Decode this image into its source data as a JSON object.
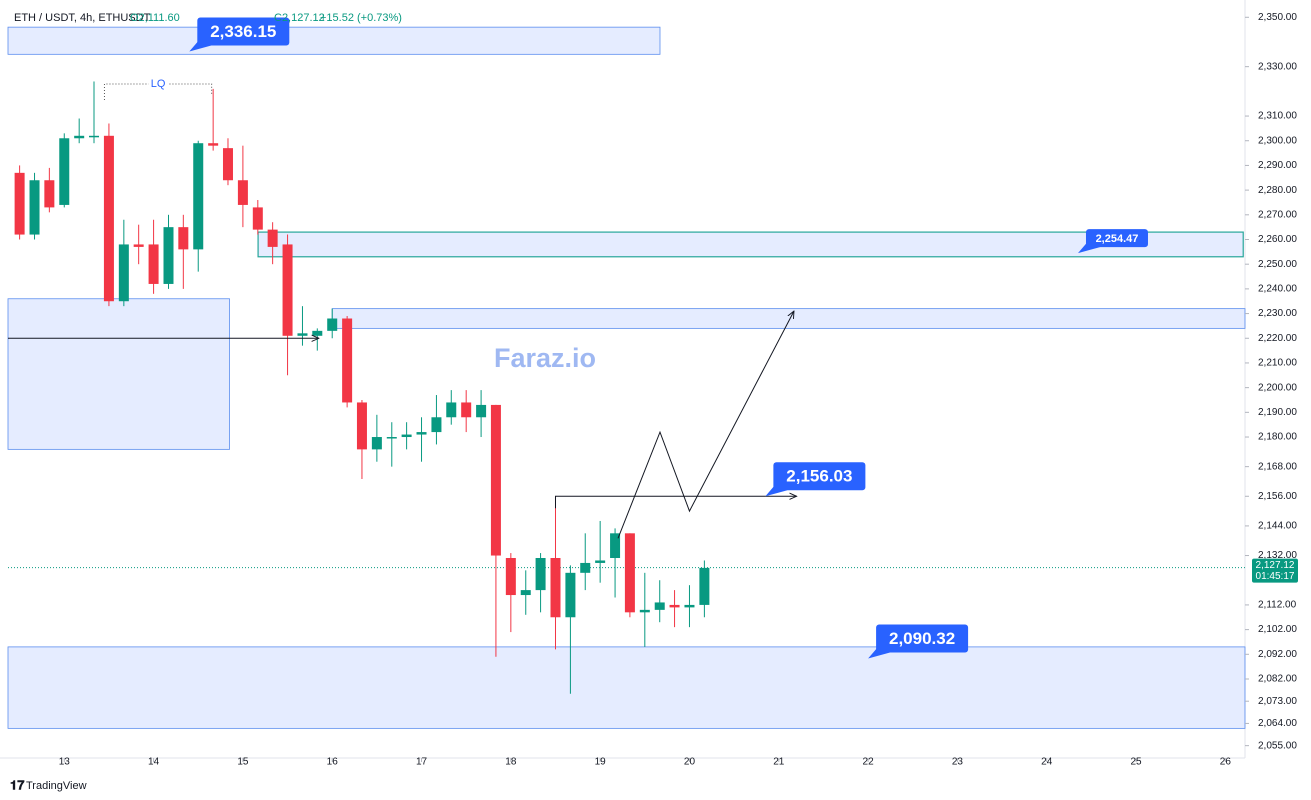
{
  "chart_data": {
    "type": "candlestick",
    "title": "ETH / USDT, 4h, ETHUSDT",
    "ohlc_open": "O2,111.60",
    "ohlc_close": "C2,127.12",
    "change": "+15.52 (+0.73%)",
    "watermark": "Faraz.io",
    "brand": "TradingView",
    "up_color": "#089981",
    "down_color": "#f23645",
    "x": [
      12.5,
      12.667,
      12.833,
      13,
      13.167,
      13.333,
      13.5,
      13.667,
      13.833,
      14,
      14.167,
      14.333,
      14.5,
      14.667,
      14.833,
      15,
      15.167,
      15.333,
      15.5,
      15.667,
      15.833,
      16,
      16.167,
      16.333,
      16.5,
      16.667,
      16.833,
      17,
      17.167,
      17.333,
      17.5,
      17.667,
      17.833,
      18,
      18.167,
      18.333,
      18.5,
      18.667,
      18.833,
      19,
      19.167,
      19.333,
      19.5,
      19.667,
      19.833,
      20,
      20.167
    ],
    "open": [
      2287,
      2262,
      2284,
      2274,
      2301,
      2302,
      2302,
      2235,
      2258,
      2258,
      2242,
      2265,
      2256,
      2299,
      2297,
      2284,
      2273,
      2264,
      2258,
      2221,
      2221,
      2223,
      2228,
      2194,
      2175,
      2180,
      2180,
      2181,
      2182,
      2188,
      2194,
      2188,
      2193,
      2131,
      2116,
      2118,
      2131,
      2107,
      2125,
      2129,
      2131,
      2141,
      2109,
      2110,
      2112,
      2111,
      2112
    ],
    "high": [
      2290,
      2287,
      2289,
      2303,
      2309,
      2324,
      2307,
      2268,
      2266,
      2268,
      2270,
      2270,
      2300,
      2321,
      2301,
      2298,
      2276,
      2267,
      2262,
      2233,
      2224,
      2232,
      2229,
      2195,
      2189,
      2186,
      2186,
      2188,
      2197,
      2199,
      2199,
      2199,
      2193,
      2133,
      2126,
      2133,
      2156,
      2128,
      2141,
      2146,
      2143,
      2141,
      2125,
      2122,
      2118,
      2120,
      2130
    ],
    "low": [
      2260,
      2260,
      2271,
      2273,
      2299,
      2299,
      2233,
      2233,
      2250,
      2238,
      2240,
      2240,
      2247,
      2296,
      2282,
      2265,
      2262,
      2250,
      2205,
      2217,
      2215,
      2220,
      2192,
      2163,
      2170,
      2168,
      2175,
      2170,
      2177,
      2185,
      2182,
      2180,
      2091,
      2101,
      2108,
      2109,
      2094,
      2076,
      2118,
      2121,
      2115,
      2107,
      2095,
      2105,
      2103,
      2103,
      2107
    ],
    "close": [
      2262,
      2284,
      2273,
      2301,
      2302,
      2302,
      2235,
      2258,
      2257,
      2242,
      2265,
      2256,
      2299,
      2298,
      2284,
      2274,
      2264,
      2257,
      2221,
      2222,
      2223,
      2228,
      2194,
      2175,
      2180,
      2180,
      2181,
      2182,
      2188,
      2194,
      2188,
      2193,
      2132,
      2116,
      2118,
      2131,
      2107,
      2125,
      2129,
      2130,
      2141,
      2109,
      2110,
      2113,
      2111,
      2112,
      2127
    ],
    "xlim": [
      12.37,
      26.22
    ],
    "xticks": [
      13,
      14,
      15,
      16,
      17,
      18,
      19,
      20,
      21,
      22,
      23,
      24,
      25,
      26
    ],
    "ylim": [
      2050,
      2357
    ],
    "yticks": [
      {
        "value": 2350,
        "label": "2,350.00"
      },
      {
        "value": 2330,
        "label": "2,330.00"
      },
      {
        "value": 2310,
        "label": "2,310.00"
      },
      {
        "value": 2300,
        "label": "2,300.00"
      },
      {
        "value": 2290,
        "label": "2,290.00"
      },
      {
        "value": 2280,
        "label": "2,280.00"
      },
      {
        "value": 2270,
        "label": "2,270.00"
      },
      {
        "value": 2260,
        "label": "2,260.00"
      },
      {
        "value": 2250,
        "label": "2,250.00"
      },
      {
        "value": 2240,
        "label": "2,240.00"
      },
      {
        "value": 2230,
        "label": "2,230.00"
      },
      {
        "value": 2220,
        "label": "2,220.00"
      },
      {
        "value": 2210,
        "label": "2,210.00"
      },
      {
        "value": 2200,
        "label": "2,200.00"
      },
      {
        "value": 2190,
        "label": "2,190.00"
      },
      {
        "value": 2180,
        "label": "2,180.00"
      },
      {
        "value": 2168,
        "label": "2,168.00"
      },
      {
        "value": 2156,
        "label": "2,156.00"
      },
      {
        "value": 2144,
        "label": "2,144.00"
      },
      {
        "value": 2132,
        "label": "2,132.00"
      },
      {
        "value": 2112,
        "label": "2,112.00"
      },
      {
        "value": 2102,
        "label": "2,102.00"
      },
      {
        "value": 2092,
        "label": "2,092.00"
      },
      {
        "value": 2082,
        "label": "2,082.00"
      },
      {
        "value": 2073,
        "label": "2,073.00"
      },
      {
        "value": 2064,
        "label": "2,064.00"
      },
      {
        "value": 2055,
        "label": "2,055.00"
      }
    ],
    "last_price": {
      "value": 2127.12,
      "label": "2,127.12"
    },
    "countdown": "01:45:17",
    "zones": [
      {
        "x": [
          12.37,
          19.67
        ],
        "y": [
          2335,
          2346
        ]
      },
      {
        "x": [
          15.17,
          26.2
        ],
        "y": [
          2253,
          2263
        ]
      },
      {
        "x": [
          16.0,
          26.22
        ],
        "y": [
          2224,
          2232
        ]
      },
      {
        "x": [
          12.37,
          14.85
        ],
        "y": [
          2175,
          2236
        ]
      },
      {
        "x": [
          12.37,
          26.22
        ],
        "y": [
          2062,
          2095
        ]
      }
    ],
    "callouts": [
      {
        "value": 2336.15,
        "label": "2,336.15",
        "x": 14.4
      },
      {
        "value": 2254.47,
        "label": "2,254.47",
        "x": 24.35
      },
      {
        "value": 2156.03,
        "label": "2,156.03",
        "x": 20.85
      },
      {
        "value": 2090.32,
        "label": "2,090.32",
        "x": 22.0
      }
    ],
    "liquidity": {
      "x": [
        13.45,
        14.65
      ],
      "y": 2323,
      "label": "LQ"
    },
    "arrow_line": {
      "x": [
        12.37,
        15.85
      ],
      "y": 2220
    },
    "level_line": {
      "x": [
        18.5,
        21.2
      ],
      "y": 2156
    },
    "path": {
      "x": [
        19.2,
        19.67,
        20.0,
        21.17
      ],
      "y": [
        2139,
        2182,
        2150,
        2231
      ]
    }
  }
}
